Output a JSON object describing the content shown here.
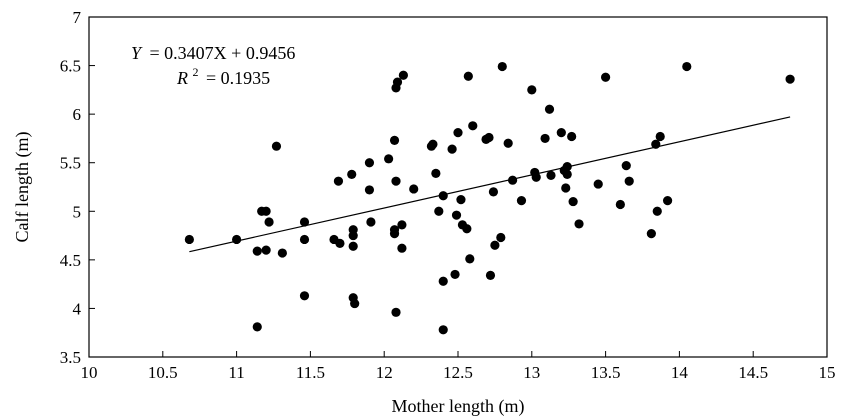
{
  "chart_data": {
    "type": "scatter",
    "xlabel": "Mother length (m)",
    "ylabel": "Calf length (m)",
    "xlim": [
      10,
      15
    ],
    "ylim": [
      3.5,
      7
    ],
    "x_ticks": [
      "10",
      "10.5",
      "11",
      "11.5",
      "12",
      "12.5",
      "13",
      "13.5",
      "14",
      "14.5",
      "15"
    ],
    "y_ticks": [
      "3.5",
      "4",
      "4.5",
      "5",
      "5.5",
      "6",
      "6.5",
      "7"
    ],
    "grid": false,
    "legend": "none",
    "point_color": "#000000",
    "trendline": {
      "slope": 0.3407,
      "intercept": 0.9456,
      "x_range": [
        10.68,
        14.75
      ],
      "equation_lhs": "Y",
      "equation_rhs": "= 0.3407X + 0.9456",
      "r2_symbol": "R",
      "r2_exponent": "2",
      "r2_value": "= 0.1935"
    },
    "points": [
      [
        10.68,
        4.71
      ],
      [
        11.0,
        4.71
      ],
      [
        11.14,
        4.59
      ],
      [
        11.14,
        3.81
      ],
      [
        11.17,
        5.0
      ],
      [
        11.2,
        5.0
      ],
      [
        11.2,
        4.6
      ],
      [
        11.22,
        4.89
      ],
      [
        11.27,
        5.67
      ],
      [
        11.31,
        4.57
      ],
      [
        11.46,
        4.89
      ],
      [
        11.46,
        4.71
      ],
      [
        11.46,
        4.13
      ],
      [
        11.66,
        4.71
      ],
      [
        11.69,
        5.31
      ],
      [
        11.7,
        4.67
      ],
      [
        11.78,
        5.38
      ],
      [
        11.79,
        4.64
      ],
      [
        11.79,
        4.81
      ],
      [
        11.79,
        4.75
      ],
      [
        11.79,
        4.11
      ],
      [
        11.8,
        4.05
      ],
      [
        11.9,
        5.5
      ],
      [
        11.9,
        5.22
      ],
      [
        11.91,
        4.89
      ],
      [
        12.03,
        5.54
      ],
      [
        12.07,
        5.73
      ],
      [
        12.07,
        4.81
      ],
      [
        12.07,
        4.77
      ],
      [
        12.08,
        5.31
      ],
      [
        12.08,
        6.27
      ],
      [
        12.08,
        3.96
      ],
      [
        12.09,
        6.33
      ],
      [
        12.12,
        4.86
      ],
      [
        12.12,
        4.62
      ],
      [
        12.13,
        6.4
      ],
      [
        12.2,
        5.23
      ],
      [
        12.32,
        5.67
      ],
      [
        12.33,
        5.69
      ],
      [
        12.35,
        5.39
      ],
      [
        12.37,
        5.0
      ],
      [
        12.4,
        5.16
      ],
      [
        12.4,
        4.28
      ],
      [
        12.4,
        3.78
      ],
      [
        12.46,
        5.64
      ],
      [
        12.48,
        4.35
      ],
      [
        12.49,
        4.96
      ],
      [
        12.5,
        5.81
      ],
      [
        12.52,
        5.12
      ],
      [
        12.53,
        4.86
      ],
      [
        12.56,
        4.82
      ],
      [
        12.57,
        6.39
      ],
      [
        12.58,
        4.51
      ],
      [
        12.6,
        5.88
      ],
      [
        12.69,
        5.74
      ],
      [
        12.71,
        5.76
      ],
      [
        12.72,
        4.34
      ],
      [
        12.74,
        5.2
      ],
      [
        12.75,
        4.65
      ],
      [
        12.79,
        4.73
      ],
      [
        12.8,
        6.49
      ],
      [
        12.84,
        5.7
      ],
      [
        12.87,
        5.32
      ],
      [
        12.93,
        5.11
      ],
      [
        13.0,
        6.25
      ],
      [
        13.02,
        5.4
      ],
      [
        13.03,
        5.35
      ],
      [
        13.09,
        5.75
      ],
      [
        13.12,
        6.05
      ],
      [
        13.13,
        5.37
      ],
      [
        13.2,
        5.81
      ],
      [
        13.22,
        5.42
      ],
      [
        13.23,
        5.24
      ],
      [
        13.24,
        5.46
      ],
      [
        13.24,
        5.38
      ],
      [
        13.27,
        5.77
      ],
      [
        13.28,
        5.1
      ],
      [
        13.32,
        4.87
      ],
      [
        13.45,
        5.28
      ],
      [
        13.5,
        6.38
      ],
      [
        13.6,
        5.07
      ],
      [
        13.64,
        5.47
      ],
      [
        13.66,
        5.31
      ],
      [
        13.81,
        4.77
      ],
      [
        13.84,
        5.69
      ],
      [
        13.85,
        5.0
      ],
      [
        13.87,
        5.77
      ],
      [
        13.92,
        5.11
      ],
      [
        14.05,
        6.49
      ],
      [
        14.75,
        6.36
      ]
    ]
  }
}
